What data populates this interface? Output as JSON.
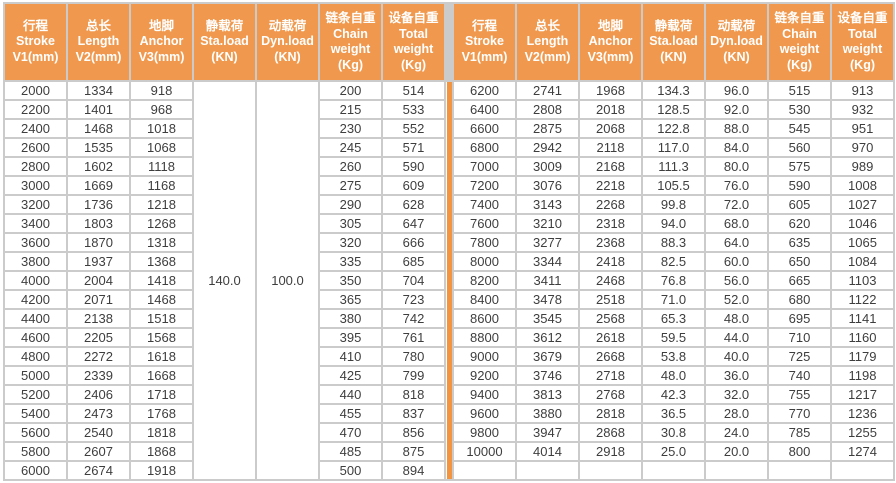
{
  "colors": {
    "header_bg": "#F0994E",
    "divider_stripe": "#F29440",
    "grid_line": "#CBCBCB",
    "cell_text": "#3E3E3E",
    "header_text": "#FFFFFF"
  },
  "table": {
    "header_columns": [
      {
        "key": "stroke",
        "lines": [
          "行程",
          "Stroke",
          "V1(mm)"
        ]
      },
      {
        "key": "length",
        "lines": [
          "总长",
          "Length",
          "V2(mm)"
        ]
      },
      {
        "key": "anchor",
        "lines": [
          "地脚",
          "Anchor",
          "V3(mm)"
        ]
      },
      {
        "key": "static-load",
        "lines": [
          "静载荷",
          "Sta.load",
          "(KN)"
        ]
      },
      {
        "key": "dynamic-load",
        "lines": [
          "动载荷",
          "Dyn.load",
          "(KN)"
        ]
      },
      {
        "key": "chain-weight",
        "lines": [
          "链条自重",
          "Chain",
          "weight",
          "(Kg)"
        ]
      },
      {
        "key": "total-weight",
        "lines": [
          "设备自重",
          "Total",
          "weight",
          "(Kg)"
        ]
      }
    ],
    "left": {
      "static_load": "140.0",
      "dynamic_load": "100.0",
      "rows": [
        {
          "stroke": "2000",
          "length": "1334",
          "anchor": "918",
          "chain": "200",
          "total": "514"
        },
        {
          "stroke": "2200",
          "length": "1401",
          "anchor": "968",
          "chain": "215",
          "total": "533"
        },
        {
          "stroke": "2400",
          "length": "1468",
          "anchor": "1018",
          "chain": "230",
          "total": "552"
        },
        {
          "stroke": "2600",
          "length": "1535",
          "anchor": "1068",
          "chain": "245",
          "total": "571"
        },
        {
          "stroke": "2800",
          "length": "1602",
          "anchor": "1118",
          "chain": "260",
          "total": "590"
        },
        {
          "stroke": "3000",
          "length": "1669",
          "anchor": "1168",
          "chain": "275",
          "total": "609"
        },
        {
          "stroke": "3200",
          "length": "1736",
          "anchor": "1218",
          "chain": "290",
          "total": "628"
        },
        {
          "stroke": "3400",
          "length": "1803",
          "anchor": "1268",
          "chain": "305",
          "total": "647"
        },
        {
          "stroke": "3600",
          "length": "1870",
          "anchor": "1318",
          "chain": "320",
          "total": "666"
        },
        {
          "stroke": "3800",
          "length": "1937",
          "anchor": "1368",
          "chain": "335",
          "total": "685"
        },
        {
          "stroke": "4000",
          "length": "2004",
          "anchor": "1418",
          "chain": "350",
          "total": "704"
        },
        {
          "stroke": "4200",
          "length": "2071",
          "anchor": "1468",
          "chain": "365",
          "total": "723"
        },
        {
          "stroke": "4400",
          "length": "2138",
          "anchor": "1518",
          "chain": "380",
          "total": "742"
        },
        {
          "stroke": "4600",
          "length": "2205",
          "anchor": "1568",
          "chain": "395",
          "total": "761"
        },
        {
          "stroke": "4800",
          "length": "2272",
          "anchor": "1618",
          "chain": "410",
          "total": "780"
        },
        {
          "stroke": "5000",
          "length": "2339",
          "anchor": "1668",
          "chain": "425",
          "total": "799"
        },
        {
          "stroke": "5200",
          "length": "2406",
          "anchor": "1718",
          "chain": "440",
          "total": "818"
        },
        {
          "stroke": "5400",
          "length": "2473",
          "anchor": "1768",
          "chain": "455",
          "total": "837"
        },
        {
          "stroke": "5600",
          "length": "2540",
          "anchor": "1818",
          "chain": "470",
          "total": "856"
        },
        {
          "stroke": "5800",
          "length": "2607",
          "anchor": "1868",
          "chain": "485",
          "total": "875"
        },
        {
          "stroke": "6000",
          "length": "2674",
          "anchor": "1918",
          "chain": "500",
          "total": "894"
        }
      ]
    },
    "right": {
      "rows": [
        {
          "stroke": "6200",
          "length": "2741",
          "anchor": "1968",
          "sta": "134.3",
          "dyn": "96.0",
          "chain": "515",
          "total": "913"
        },
        {
          "stroke": "6400",
          "length": "2808",
          "anchor": "2018",
          "sta": "128.5",
          "dyn": "92.0",
          "chain": "530",
          "total": "932"
        },
        {
          "stroke": "6600",
          "length": "2875",
          "anchor": "2068",
          "sta": "122.8",
          "dyn": "88.0",
          "chain": "545",
          "total": "951"
        },
        {
          "stroke": "6800",
          "length": "2942",
          "anchor": "2118",
          "sta": "117.0",
          "dyn": "84.0",
          "chain": "560",
          "total": "970"
        },
        {
          "stroke": "7000",
          "length": "3009",
          "anchor": "2168",
          "sta": "111.3",
          "dyn": "80.0",
          "chain": "575",
          "total": "989"
        },
        {
          "stroke": "7200",
          "length": "3076",
          "anchor": "2218",
          "sta": "105.5",
          "dyn": "76.0",
          "chain": "590",
          "total": "1008"
        },
        {
          "stroke": "7400",
          "length": "3143",
          "anchor": "2268",
          "sta": "99.8",
          "dyn": "72.0",
          "chain": "605",
          "total": "1027"
        },
        {
          "stroke": "7600",
          "length": "3210",
          "anchor": "2318",
          "sta": "94.0",
          "dyn": "68.0",
          "chain": "620",
          "total": "1046"
        },
        {
          "stroke": "7800",
          "length": "3277",
          "anchor": "2368",
          "sta": "88.3",
          "dyn": "64.0",
          "chain": "635",
          "total": "1065"
        },
        {
          "stroke": "8000",
          "length": "3344",
          "anchor": "2418",
          "sta": "82.5",
          "dyn": "60.0",
          "chain": "650",
          "total": "1084"
        },
        {
          "stroke": "8200",
          "length": "3411",
          "anchor": "2468",
          "sta": "76.8",
          "dyn": "56.0",
          "chain": "665",
          "total": "1103"
        },
        {
          "stroke": "8400",
          "length": "3478",
          "anchor": "2518",
          "sta": "71.0",
          "dyn": "52.0",
          "chain": "680",
          "total": "1122"
        },
        {
          "stroke": "8600",
          "length": "3545",
          "anchor": "2568",
          "sta": "65.3",
          "dyn": "48.0",
          "chain": "695",
          "total": "1141"
        },
        {
          "stroke": "8800",
          "length": "3612",
          "anchor": "2618",
          "sta": "59.5",
          "dyn": "44.0",
          "chain": "710",
          "total": "1160"
        },
        {
          "stroke": "9000",
          "length": "3679",
          "anchor": "2668",
          "sta": "53.8",
          "dyn": "40.0",
          "chain": "725",
          "total": "1179"
        },
        {
          "stroke": "9200",
          "length": "3746",
          "anchor": "2718",
          "sta": "48.0",
          "dyn": "36.0",
          "chain": "740",
          "total": "1198"
        },
        {
          "stroke": "9400",
          "length": "3813",
          "anchor": "2768",
          "sta": "42.3",
          "dyn": "32.0",
          "chain": "755",
          "total": "1217"
        },
        {
          "stroke": "9600",
          "length": "3880",
          "anchor": "2818",
          "sta": "36.5",
          "dyn": "28.0",
          "chain": "770",
          "total": "1236"
        },
        {
          "stroke": "9800",
          "length": "3947",
          "anchor": "2868",
          "sta": "30.8",
          "dyn": "24.0",
          "chain": "785",
          "total": "1255"
        },
        {
          "stroke": "10000",
          "length": "4014",
          "anchor": "2918",
          "sta": "25.0",
          "dyn": "20.0",
          "chain": "800",
          "total": "1274"
        },
        {
          "stroke": "",
          "length": "",
          "anchor": "",
          "sta": "",
          "dyn": "",
          "chain": "",
          "total": ""
        }
      ]
    }
  }
}
